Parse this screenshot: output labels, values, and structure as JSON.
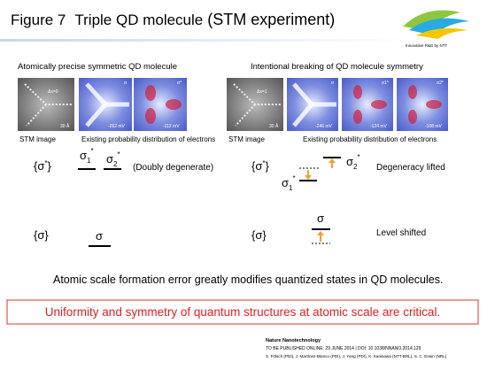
{
  "header": {
    "figure": "Figure 7",
    "title": "Triple QD molecule",
    "subtitle": "(STM experiment)",
    "logo_text": "Innovative R&D by NTT"
  },
  "left": {
    "heading": "Atomically precise symmetric QD molecule",
    "images": {
      "stm_dx": "Δx=0",
      "stm_scale": "30 Å",
      "img1_label": "σ",
      "img1_bias": "-262 mV",
      "img2_label": "σ*",
      "img2_bias": "-112 mV"
    },
    "caption_stm": "STM image",
    "caption_prob": "Existing probability distribution of electrons",
    "upper_set": {
      "open": "{σ",
      "sup": "*",
      "close": "}"
    },
    "sigma1": {
      "symbol": "σ",
      "sub": "1",
      "sup": "*"
    },
    "sigma2": {
      "symbol": "σ",
      "sub": "2",
      "sup": "*"
    },
    "upper_note": "(Doubly degenerate)",
    "lower_set": "{σ}",
    "lower_level": "σ"
  },
  "right": {
    "heading": "Intentional breaking of QD molecule symmetry",
    "images": {
      "stm_dx": "Δx=1",
      "stm_scale": "30 Å",
      "img1_label": "σ",
      "img1_bias": "-246 mV",
      "img2_label": "σ1*",
      "img2_bias": "-124 mV",
      "img3_label": "σ2*",
      "img3_bias": "-108 mV"
    },
    "caption_stm": "STM image",
    "caption_prob": "Existing probability distribution of electrons",
    "upper_set": {
      "open": "{σ",
      "sup": "*",
      "close": "}"
    },
    "sigma1": {
      "symbol": "σ",
      "sub": "1",
      "sup": "*"
    },
    "sigma2": {
      "symbol": "σ",
      "sub": "2",
      "sup": "*"
    },
    "upper_note": "Degeneracy lifted",
    "lower_set": "{σ}",
    "lower_level": "σ",
    "lower_note": "Level shifted"
  },
  "statement": "Atomic scale formation error greatly modifies quantized states in QD molecules.",
  "conclusion": "Uniformity and symmetry of quantum structures at atomic scale are critical.",
  "citation": {
    "journal": "Nature Nanotechnology",
    "line1": "TO BE PUBLISHED ONLINE: 29 JUNE 2014 | DOI: 10.1038/NNANO.2014.129",
    "line2": "S. Fölsch (PDI), J. Martínez-Blanco (PDI), J. Yang (PDI), K. Kanisawa (NTT-BRL), S. C. Erwin (NRL)"
  }
}
